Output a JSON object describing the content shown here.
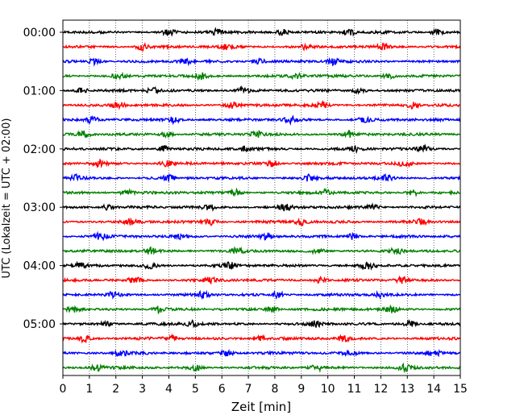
{
  "chart_data": {
    "type": "line",
    "title": "",
    "xlabel": "Zeit  [min]",
    "ylabel": "UTC (Lokalzeit = UTC + 02:00)",
    "xlim": [
      0,
      15
    ],
    "x_ticks": [
      "0",
      "1",
      "2",
      "3",
      "4",
      "5",
      "6",
      "7",
      "8",
      "9",
      "10",
      "11",
      "12",
      "13",
      "14",
      "15"
    ],
    "y_ticks": [
      "00:00",
      "01:00",
      "02:00",
      "03:00",
      "04:00",
      "05:00"
    ],
    "grid": "vertical dotted at each minute",
    "rows_per_hour": 4,
    "row_minutes": 15,
    "row_colors": [
      "#000000",
      "#ff0000",
      "#0000ff",
      "#008000"
    ],
    "traces": [
      {
        "start": "00:00",
        "color": "#000000",
        "bursts": [
          4.0,
          5.8,
          8.3,
          10.8,
          14.1
        ]
      },
      {
        "start": "00:15",
        "color": "#ff0000",
        "bursts": [
          3.0,
          6.2,
          9.2,
          12.1
        ]
      },
      {
        "start": "00:30",
        "color": "#0000ff",
        "bursts": [
          1.2,
          4.6,
          7.4,
          10.2
        ]
      },
      {
        "start": "00:45",
        "color": "#008000",
        "bursts": [
          2.1,
          5.2,
          8.8,
          12.3
        ]
      },
      {
        "start": "01:00",
        "color": "#000000",
        "bursts": [
          0.7,
          3.4,
          6.8,
          11.2
        ]
      },
      {
        "start": "01:15",
        "color": "#ff0000",
        "bursts": [
          2.1,
          6.4,
          9.8,
          13.2
        ]
      },
      {
        "start": "01:30",
        "color": "#0000ff",
        "bursts": [
          1.1,
          4.2,
          8.6,
          11.4
        ]
      },
      {
        "start": "01:45",
        "color": "#008000",
        "bursts": [
          0.8,
          3.9,
          7.3,
          10.8
        ]
      },
      {
        "start": "02:00",
        "color": "#000000",
        "bursts": [
          3.8,
          6.9,
          11.0,
          13.6
        ]
      },
      {
        "start": "02:15",
        "color": "#ff0000",
        "bursts": [
          1.4,
          3.9,
          7.9,
          12.9
        ]
      },
      {
        "start": "02:30",
        "color": "#0000ff",
        "bursts": [
          0.5,
          4.0,
          9.3,
          12.2
        ]
      },
      {
        "start": "02:45",
        "color": "#008000",
        "bursts": [
          2.4,
          6.5,
          9.9,
          13.2
        ]
      },
      {
        "start": "03:00",
        "color": "#000000",
        "bursts": [
          1.7,
          5.5,
          8.4,
          11.7
        ]
      },
      {
        "start": "03:15",
        "color": "#ff0000",
        "bursts": [
          2.6,
          5.6,
          9.0,
          13.5
        ]
      },
      {
        "start": "03:30",
        "color": "#0000ff",
        "bursts": [
          1.4,
          4.4,
          7.7,
          10.9
        ]
      },
      {
        "start": "03:45",
        "color": "#008000",
        "bursts": [
          3.3,
          6.6,
          9.6,
          12.6
        ]
      },
      {
        "start": "04:00",
        "color": "#000000",
        "bursts": [
          0.6,
          3.3,
          6.3,
          11.5
        ]
      },
      {
        "start": "04:15",
        "color": "#ff0000",
        "bursts": [
          2.7,
          5.6,
          9.7,
          12.8
        ]
      },
      {
        "start": "04:30",
        "color": "#0000ff",
        "bursts": [
          1.9,
          5.3,
          8.1,
          11.9
        ]
      },
      {
        "start": "04:45",
        "color": "#008000",
        "bursts": [
          0.4,
          3.6,
          7.9,
          12.4
        ]
      },
      {
        "start": "05:00",
        "color": "#000000",
        "bursts": [
          1.6,
          4.9,
          9.5,
          13.1
        ]
      },
      {
        "start": "05:15",
        "color": "#ff0000",
        "bursts": [
          0.8,
          4.1,
          7.4,
          10.6
        ]
      },
      {
        "start": "05:30",
        "color": "#0000ff",
        "bursts": [
          2.2,
          6.2,
          10.8,
          14.0
        ]
      },
      {
        "start": "05:45",
        "color": "#008000",
        "bursts": [
          1.3,
          5.0,
          9.6,
          12.9
        ]
      }
    ]
  }
}
